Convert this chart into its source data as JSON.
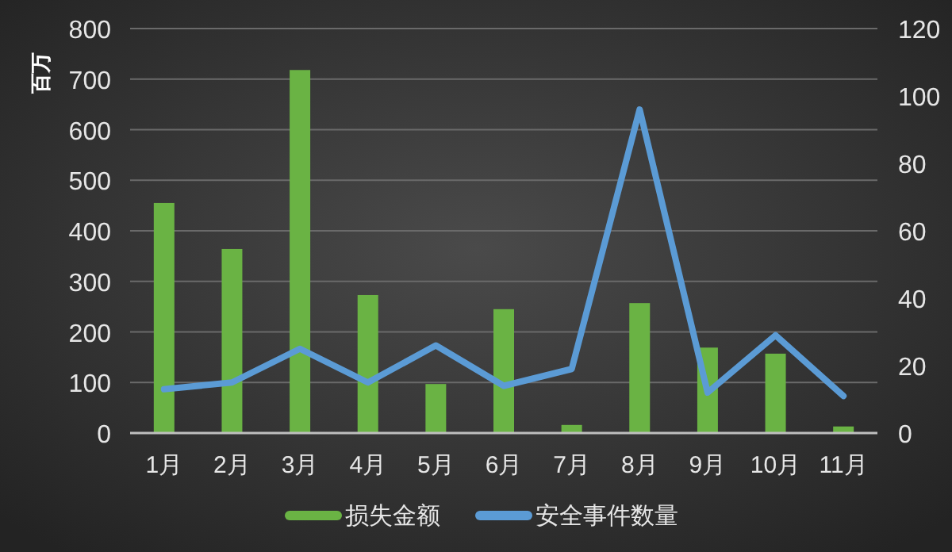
{
  "chart_data": {
    "type": "bar",
    "ylabel": "百万",
    "categories": [
      "1月",
      "2月",
      "3月",
      "4月",
      "5月",
      "6月",
      "7月",
      "8月",
      "9月",
      "10月",
      "11月"
    ],
    "series": [
      {
        "name": "损失金额",
        "color": "#6ab344",
        "values": [
          455,
          364,
          718,
          273,
          97,
          245,
          16,
          257,
          169,
          157,
          13
        ]
      },
      {
        "name": "安全事件数量",
        "type": "line",
        "axis": "y2",
        "color": "#5b9bd5",
        "values": [
          13,
          15,
          25,
          15,
          26,
          14,
          19,
          96,
          12,
          29,
          11
        ]
      }
    ],
    "ylim": [
      0,
      800
    ],
    "yticks": [
      0,
      100,
      200,
      300,
      400,
      500,
      600,
      700,
      800
    ],
    "y2lim": [
      0,
      120
    ],
    "y2ticks": [
      0,
      20,
      40,
      60,
      80,
      100,
      120
    ],
    "grid": "y",
    "legend": "bottom"
  }
}
